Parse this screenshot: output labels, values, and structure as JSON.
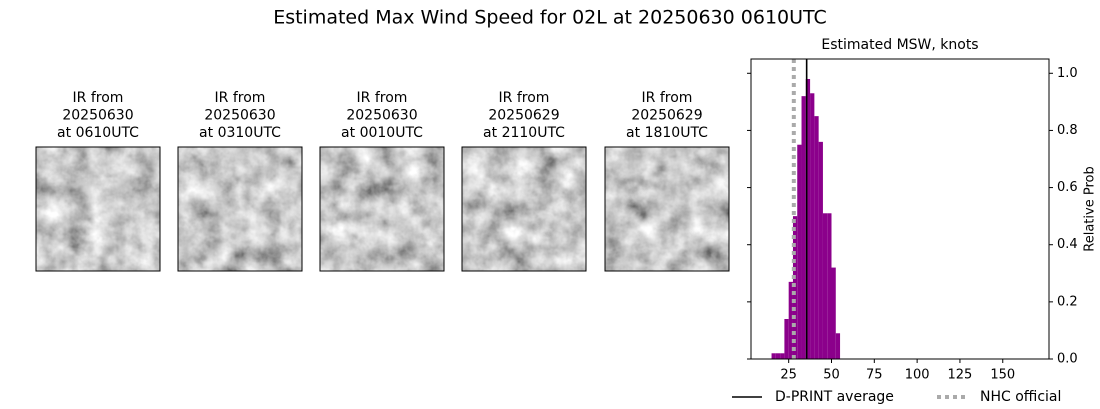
{
  "title": "Estimated Max Wind Speed for 02L at 20250630 0610UTC",
  "images": [
    {
      "caption": [
        "IR from",
        "20250630",
        "at 0610UTC"
      ]
    },
    {
      "caption": [
        "IR from",
        "20250630",
        "at 0310UTC"
      ]
    },
    {
      "caption": [
        "IR from",
        "20250630",
        "at 0010UTC"
      ]
    },
    {
      "caption": [
        "IR from",
        "20250629",
        "at 2110UTC"
      ]
    },
    {
      "caption": [
        "IR from",
        "20250629",
        "at 1810UTC"
      ]
    }
  ],
  "chart_data": {
    "type": "histogram",
    "title": "Estimated MSW, knots",
    "ylabel": "Relative Prob",
    "color": "#8b008b",
    "bins": [
      15,
      17.5,
      20,
      22.5,
      25,
      27.5,
      30,
      32.5,
      35,
      37.5,
      40,
      42.5,
      45,
      47.5,
      50,
      52.5,
      55
    ],
    "values": [
      0.02,
      0.02,
      0.02,
      0.14,
      0.27,
      0.5,
      0.75,
      0.92,
      0.98,
      0.93,
      0.85,
      0.76,
      0.51,
      0.51,
      0.32,
      0.09
    ],
    "xlim": [
      3,
      177
    ],
    "ylim": [
      0,
      1.05
    ],
    "xticks": [
      25,
      50,
      75,
      100,
      125,
      150
    ],
    "yticks": [
      {
        "value": 0,
        "label": "0.0"
      },
      {
        "value": 0.2,
        "label": "0.2"
      },
      {
        "value": 0.4,
        "label": "0.4"
      },
      {
        "value": 0.6,
        "label": "0.6"
      },
      {
        "value": 0.8,
        "label": "0.8"
      },
      {
        "value": 1,
        "label": "1.0"
      }
    ],
    "lines": [
      {
        "name": "D-PRINT average",
        "value": 35.5,
        "color": "#000000",
        "style": "solid"
      },
      {
        "name": "NHC official",
        "value": 28,
        "color": "#aaaaaa",
        "style": "dotted"
      }
    ]
  }
}
